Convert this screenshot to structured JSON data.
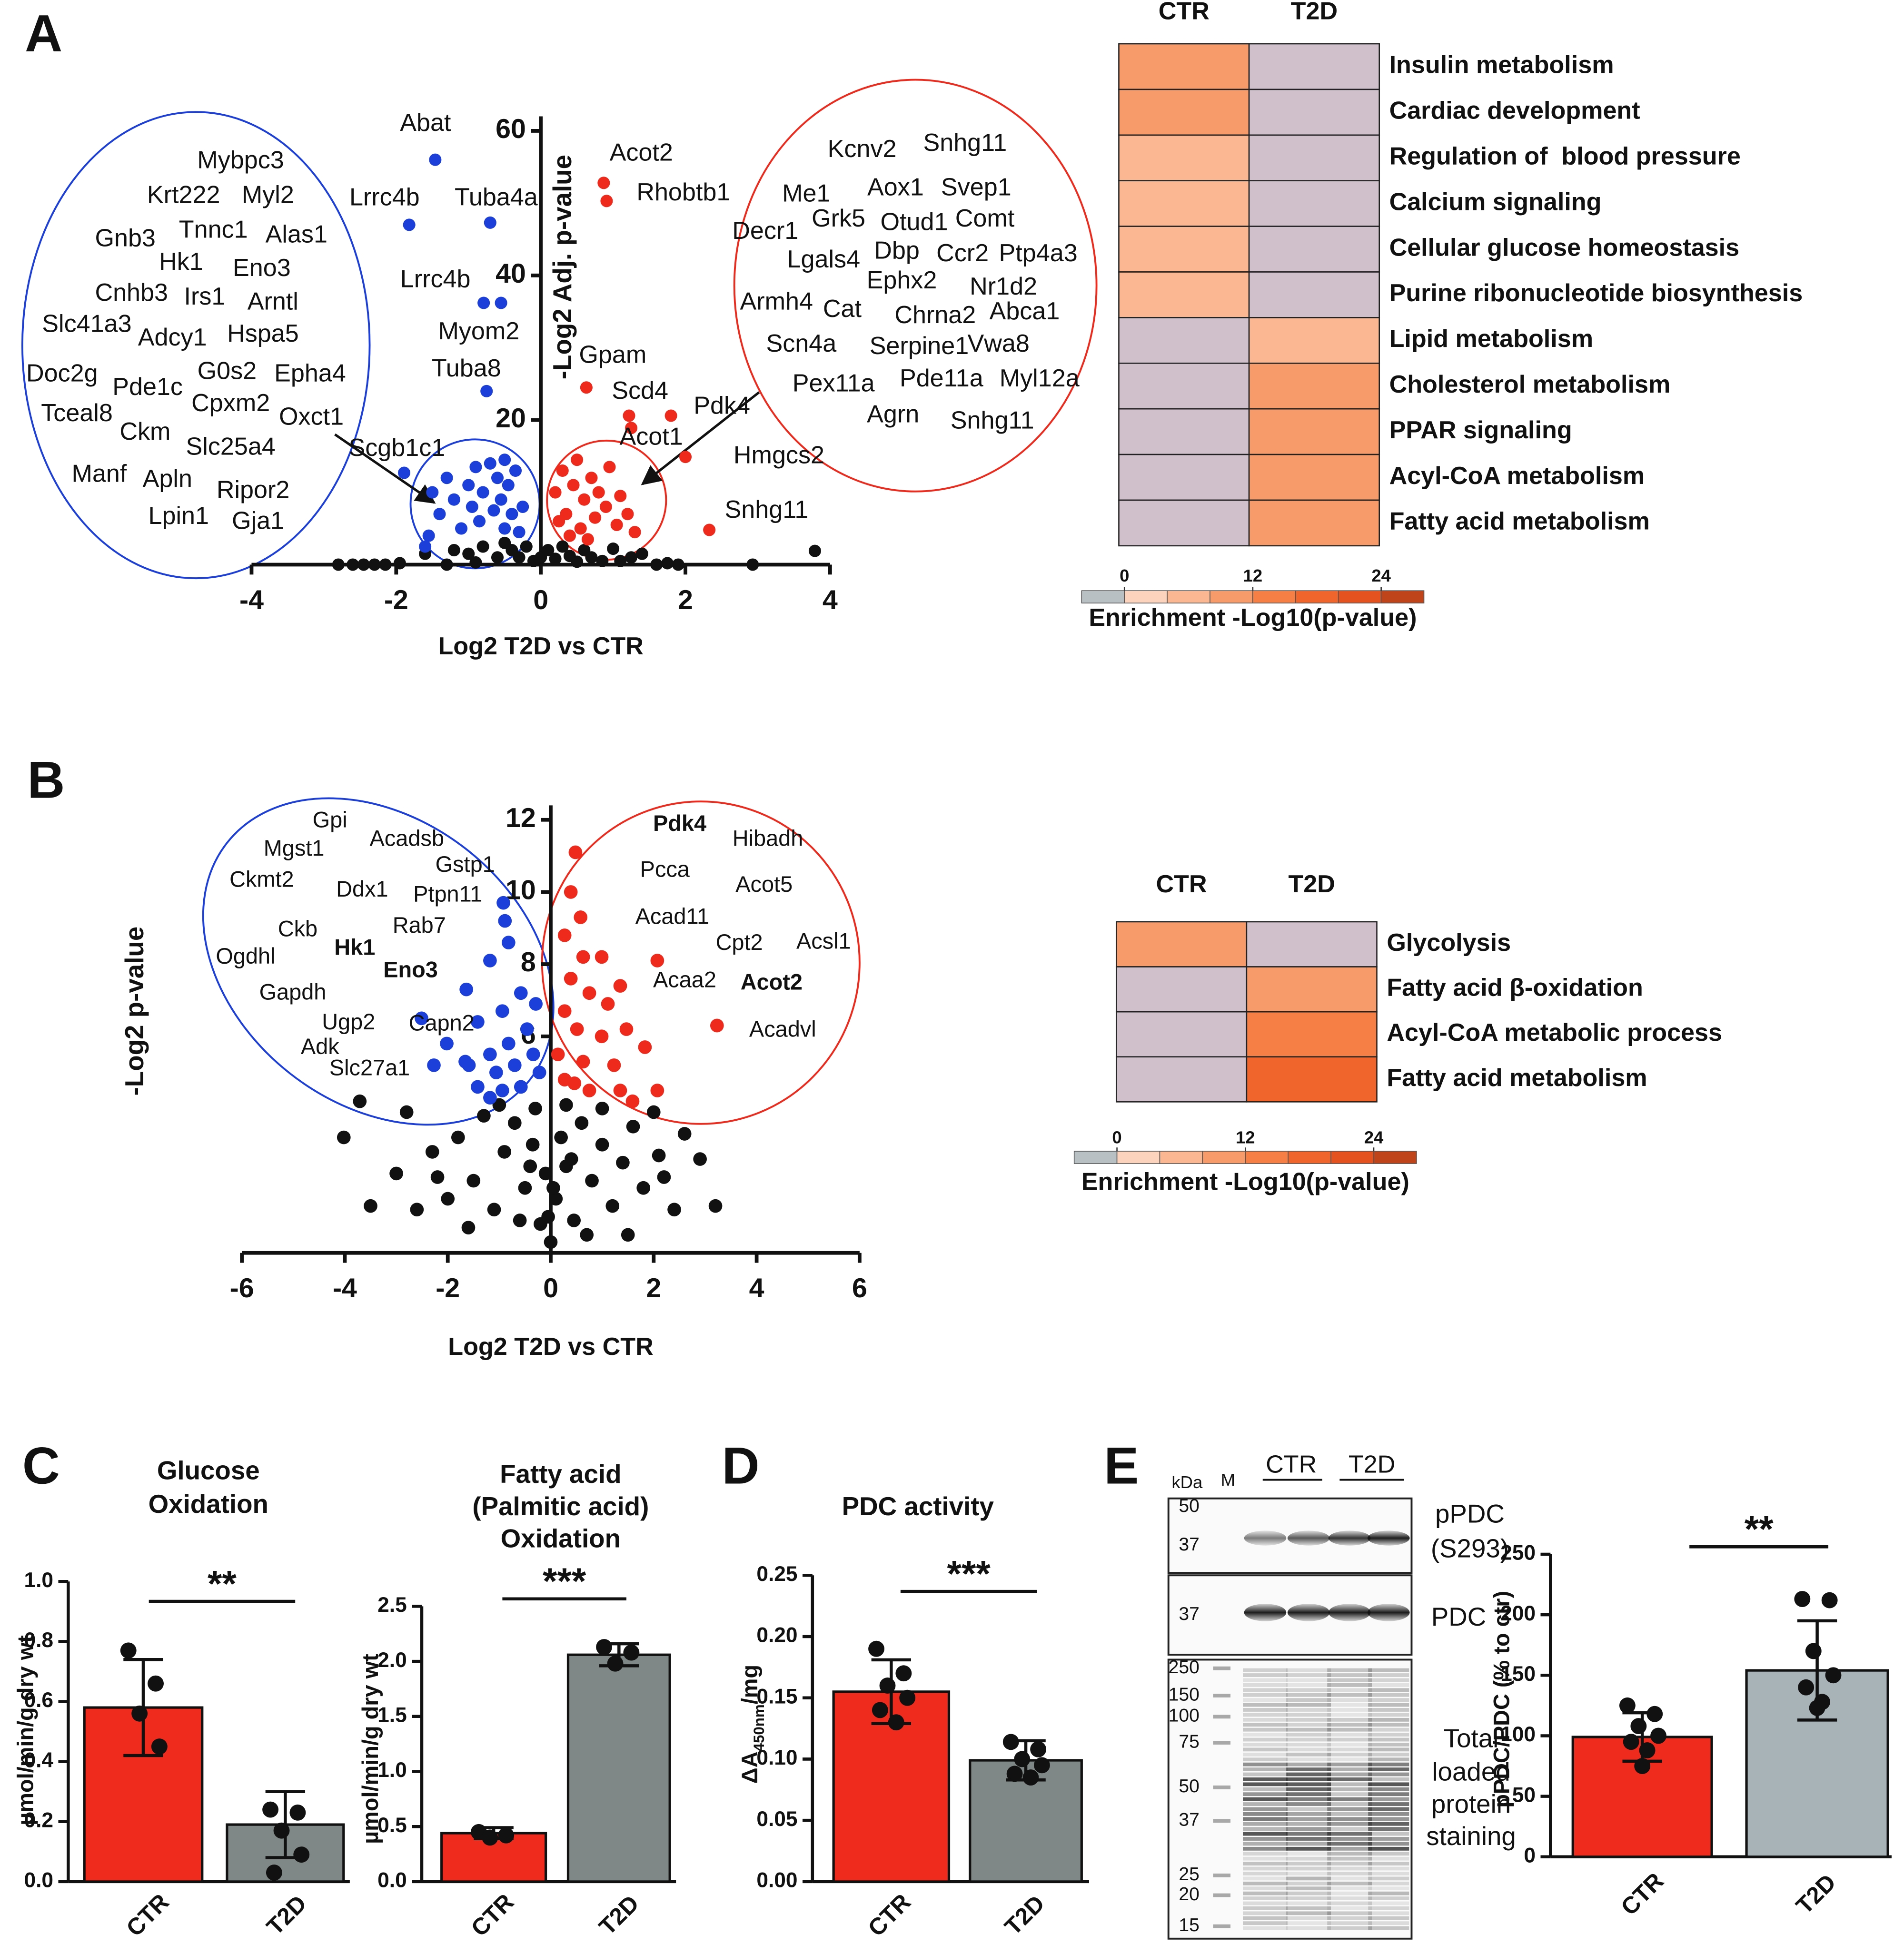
{
  "chart_data": [
    {
      "type": "scatter",
      "panel": "A",
      "xlabel": "Log2 T2D vs CTR",
      "ylabel": "-Log2 Adj. p-value",
      "xlim": [
        -4,
        4
      ],
      "xticks": [
        -4,
        -2,
        0,
        2,
        4
      ],
      "ylim": [
        0,
        62
      ],
      "yticks": [
        20,
        40,
        60
      ],
      "series": [
        {
          "color": "#111111",
          "x": [
            3.79,
            2.93,
            -2.8,
            -2.6,
            -2.45,
            -2.3,
            -2.15,
            -1.95,
            -1.6,
            -1.2,
            -1.0,
            -0.8,
            -0.6,
            -0.5,
            -0.4,
            -0.3,
            -0.2,
            -0.1,
            0,
            0.1,
            0.2,
            0.3,
            0.4,
            0.5,
            0.6,
            0.7,
            0.85,
            1.0,
            1.1,
            1.25,
            1.4,
            1.6,
            1.9,
            -1.3,
            -0.9,
            1.75
          ],
          "y": [
            1.9,
            0,
            0,
            0,
            0,
            0,
            0,
            0.2,
            1.5,
            2,
            1.5,
            2.5,
            1,
            3,
            2,
            1,
            2.5,
            0.5,
            1,
            2,
            0.8,
            2.5,
            1.2,
            0.4,
            2,
            1,
            0.5,
            2.2,
            0.5,
            1,
            1.5,
            0,
            0,
            0,
            0.3,
            0.2
          ]
        },
        {
          "color": "#1b3fd8",
          "x": [
            -1.46,
            -1.82,
            -0.7,
            -0.79,
            -0.55,
            -0.75,
            -1.89,
            -1.5,
            -1.4,
            -1.3,
            -1.2,
            -1.1,
            -1.0,
            -0.95,
            -0.9,
            -0.85,
            -0.8,
            -0.7,
            -0.65,
            -0.6,
            -0.55,
            -0.5,
            -0.45,
            -0.4,
            -0.35,
            -0.3,
            -0.25,
            -0.5,
            -1.55,
            -1.6
          ],
          "y": [
            56,
            47,
            47.3,
            36.2,
            36.2,
            24,
            12.7,
            10,
            7,
            12,
            9,
            5,
            11,
            8,
            13.5,
            6,
            10,
            14,
            7.5,
            12,
            9,
            5,
            11,
            7,
            13,
            4.5,
            8,
            14.5,
            4,
            2.5
          ]
        },
        {
          "color": "#ee2a1d",
          "x": [
            0.87,
            0.91,
            0.63,
            1.22,
            1.8,
            1.25,
            2.0,
            2.33,
            0.2,
            0.3,
            0.35,
            0.45,
            0.5,
            0.55,
            0.6,
            0.7,
            0.75,
            0.8,
            0.9,
            0.95,
            1.05,
            1.1,
            1.2,
            0.4,
            0.65,
            1.3,
            0.25
          ],
          "y": [
            52.8,
            50.3,
            24.5,
            20.6,
            20.6,
            18.9,
            14.9,
            4.8,
            10,
            13,
            7,
            11,
            14.5,
            5,
            9,
            12,
            6.5,
            10,
            8,
            13.5,
            5.5,
            9.5,
            7,
            4,
            3.5,
            4.5,
            6
          ]
        }
      ],
      "point_labels": [
        "Abat",
        "Lrrc4b",
        "Tuba4a",
        "Lrrc4b",
        "Myom2",
        "Tuba8",
        "Scgb1c1",
        "Acot2",
        "Rhobtb1",
        "Gpam",
        "Scd4",
        "Pdk4",
        "Acot1",
        "Hmgcs2",
        "Snhg11"
      ],
      "down_genes": [
        "Mybpc3",
        "Krt222",
        "Myl2",
        "Gnb3",
        "Tnnc1",
        "Alas1",
        "Hk1",
        "Eno3",
        "Cnhb3",
        "Irs1",
        "Arntl",
        "Slc41a3",
        "Adcy1",
        "Hspa5",
        "Doc2g",
        "Pde1c",
        "G0s2",
        "Epha4",
        "Tceal8",
        "Cpxm2",
        "Oxct1",
        "Ckm",
        "Slc25a4",
        "Manf",
        "Apln",
        "Ripor2",
        "Lpin1",
        "Gja1"
      ],
      "up_genes": [
        "Kcnv2",
        "Snhg11",
        "Me1",
        "Aox1",
        "Svep1",
        "Grk5",
        "Otud1",
        "Comt",
        "Decr1",
        "Dbp",
        "Ccr2",
        "Ptp4a3",
        "Lgals4",
        "Ephx2",
        "Nr1d2",
        "Armh4",
        "Cat",
        "Chrna2",
        "Abca1",
        "Scn4a",
        "Serpine1",
        "Vwa8",
        "Pex11a",
        "Pde11a",
        "Myl12a",
        "Agrn",
        "Snhg11"
      ]
    },
    {
      "type": "heatmap",
      "columns": [
        "CTR",
        "T2D"
      ],
      "rows": [
        "Insulin metabolism",
        "Cardiac development",
        "Regulation of  blood pressure",
        "Calcium signaling",
        "Cellular glucose homeostasis",
        "Purine ribonucleotide biosynthesis",
        "Lipid metabolism",
        "Cholesterol metabolism",
        "PPAR signaling",
        "Acyl-CoA metabolism",
        "Fatty acid metabolism"
      ],
      "values": [
        [
          9,
          null
        ],
        [
          9,
          null
        ],
        [
          6,
          null
        ],
        [
          6,
          null
        ],
        [
          6,
          null
        ],
        [
          6,
          null
        ],
        [
          null,
          6
        ],
        [
          null,
          10
        ],
        [
          null,
          10
        ],
        [
          null,
          10
        ],
        [
          null,
          10
        ]
      ],
      "empty_color": "#cfc0cb",
      "colorbar": {
        "clim": [
          -4,
          28
        ],
        "ticks": [
          0,
          12,
          24
        ],
        "colors": [
          "#b8c0c3",
          "#fcd3bd",
          "#fab792",
          "#f89b6b",
          "#f57f45",
          "#f0652b",
          "#e3521f",
          "#c0441a"
        ],
        "label": "Enrichment -Log10(p-value)"
      }
    },
    {
      "type": "scatter",
      "panel": "B",
      "xlabel": "Log2 T2D vs CTR",
      "ylabel": "-Log2 p-value",
      "xlim": [
        -6,
        6
      ],
      "xticks": [
        -6,
        -4,
        -2,
        0,
        2,
        4,
        6
      ],
      "ylim": [
        0,
        12.4
      ],
      "yticks": [
        6,
        8,
        10,
        12
      ],
      "series": [
        {
          "color": "#111111",
          "x": [
            -3.71,
            -4.02,
            -3.0,
            -2.6,
            -2.3,
            -2,
            -1.8,
            -1.5,
            -1.3,
            -1.1,
            -0.9,
            -0.7,
            -0.5,
            -0.35,
            -0.2,
            -0.1,
            0,
            0.1,
            0.2,
            0.3,
            0.45,
            0.6,
            0.8,
            1,
            1.2,
            1.4,
            1.6,
            1.8,
            2.1,
            2.4,
            2.6,
            2.9,
            3.2,
            -3.5,
            -2.8,
            2,
            -0.6,
            0.7,
            -1.6,
            1.5,
            -0.3,
            0.3,
            -1,
            1,
            -2.2,
            2.2,
            -0.05,
            0.05,
            -0.4,
            0.4
          ],
          "y": [
            4.2,
            3.2,
            2.2,
            1.2,
            2.8,
            1.5,
            3.2,
            2,
            3.8,
            1.2,
            2.8,
            3.6,
            1.8,
            3,
            0.8,
            2.2,
            0.3,
            1.5,
            3.2,
            2.4,
            0.9,
            3.6,
            2,
            3,
            1.3,
            2.5,
            3.5,
            1.8,
            2.7,
            1.2,
            3.3,
            2.6,
            1.3,
            1.3,
            3.9,
            3.9,
            0.9,
            0.5,
            0.7,
            0.5,
            4,
            4.1,
            4.1,
            4,
            2.1,
            2.1,
            1,
            1.8,
            2.4,
            2.6
          ]
        },
        {
          "color": "#1b3fd8",
          "x": [
            -0.92,
            -0.89,
            -0.82,
            -1.18,
            -1.64,
            -0.29,
            -0.58,
            -0.94,
            -1.42,
            -2.51,
            -2.02,
            -0.46,
            -0.82,
            -1.18,
            -1.66,
            -2.27,
            -0.34,
            -0.7,
            -1.06,
            -1.42,
            -0.58,
            -0.22,
            -0.94,
            -1.59,
            -1.18
          ],
          "y": [
            9.7,
            9.2,
            8.6,
            8.1,
            7.3,
            6.9,
            7.2,
            6.7,
            6.4,
            6.5,
            5.8,
            6.2,
            5.8,
            5.5,
            5.3,
            5.2,
            5.5,
            5.2,
            5,
            4.6,
            4.6,
            5,
            4.5,
            5.2,
            4.3
          ]
        },
        {
          "color": "#ee2a1d",
          "x": [
            0.48,
            0.39,
            0.58,
            0.27,
            0.63,
            0.99,
            0.39,
            0.75,
            1.35,
            2.07,
            3.23,
            1.11,
            0.27,
            0.51,
            0.99,
            1.47,
            1.83,
            0.14,
            0.63,
            1.23,
            0.27,
            0.75,
            1.35,
            2.07,
            1.59,
            0.46
          ],
          "y": [
            11.1,
            10,
            9.3,
            8.8,
            8.2,
            8.2,
            7.6,
            7.2,
            7.4,
            8.1,
            6.3,
            6.9,
            6.7,
            6.2,
            6,
            6.2,
            5.7,
            5.5,
            5.3,
            5.2,
            4.8,
            4.5,
            4.5,
            4.5,
            4.2,
            4.7
          ]
        }
      ],
      "down_genes": [
        "Gpi",
        "Mgst1",
        "Acadsb",
        "Ckmt2",
        "Gstp1",
        "Ddx1",
        "Ptpn11",
        "Rab7",
        "Ckb",
        {
          "text": "Hk1",
          "bold": true
        },
        "Ogdhl",
        {
          "text": "Eno3",
          "bold": true
        },
        "Gapdh",
        "Ugp2",
        "Capn2",
        "Adk",
        "Slc27a1"
      ],
      "up_genes": [
        {
          "text": "Pdk4",
          "bold": true
        },
        "Hibadh",
        "Pcca",
        "Acot5",
        "Acad11",
        "Cpt2",
        "Acsl1",
        "Acaa2",
        {
          "text": "Acot2",
          "bold": true
        },
        "Acadvl"
      ]
    },
    {
      "type": "heatmap",
      "columns": [
        "CTR",
        "T2D"
      ],
      "rows": [
        "Glycolysis",
        "Fatty acid β-oxidation",
        "Acyl-CoA metabolic process",
        "Fatty acid metabolism"
      ],
      "values": [
        [
          9,
          null
        ],
        [
          null,
          10
        ],
        [
          null,
          13
        ],
        [
          null,
          17
        ]
      ],
      "empty_color": "#cfc0cb",
      "colorbar": {
        "clim": [
          -4,
          28
        ],
        "ticks": [
          0,
          12,
          24
        ],
        "colors": [
          "#b8c0c3",
          "#fcd3bd",
          "#fab792",
          "#f89b6b",
          "#f57f45",
          "#f0652b",
          "#e3521f",
          "#c0441a"
        ],
        "label": "Enrichment -Log10(p-value)"
      }
    },
    {
      "type": "bar",
      "panel": "C",
      "title": [
        "Glucose",
        "Oxidation"
      ],
      "ylabel": "µmol/min/g dry wt",
      "categories": [
        "CTR",
        "T2D"
      ],
      "colors": [
        "#ef2b1d",
        "#7f8886"
      ],
      "values": [
        0.58,
        0.19
      ],
      "errors": [
        0.16,
        0.11
      ],
      "points": [
        [
          0.77,
          0.66,
          0.56,
          0.45
        ],
        [
          0.24,
          0.23,
          0.17,
          0.09,
          0.03
        ]
      ],
      "significance": "**",
      "ylim": [
        0,
        1
      ],
      "yticks": [
        {
          "value": 0,
          "label": "0.0"
        },
        0.2,
        0.4,
        0.6,
        0.8,
        {
          "value": 1,
          "label": "1.0"
        }
      ]
    },
    {
      "type": "bar",
      "title": [
        "Fatty acid",
        "(Palmitic acid)",
        "Oxidation"
      ],
      "ylabel": "µmol/min/g dry wt",
      "categories": [
        "CTR",
        "T2D"
      ],
      "colors": [
        "#ef2b1d",
        "#7f8886"
      ],
      "values": [
        0.44,
        2.06
      ],
      "errors": [
        0.05,
        0.1
      ],
      "points": [
        [
          0.45,
          0.42,
          0.4
        ],
        [
          2.13,
          2.08,
          1.98
        ]
      ],
      "significance": "***",
      "ylim": [
        0,
        2.5
      ],
      "yticks": [
        {
          "value": 0,
          "label": "0.0"
        },
        0.5,
        {
          "value": 1,
          "label": "1.0"
        },
        1.5,
        {
          "value": 2,
          "label": "2.0"
        },
        2.5
      ]
    },
    {
      "type": "bar",
      "panel": "D",
      "title": [
        "PDC activity"
      ],
      "ylabel": [
        "ΔA",
        "450nm",
        "/mg"
      ],
      "categories": [
        "CTR",
        "T2D"
      ],
      "colors": [
        "#ef2b1d",
        "#7f8886"
      ],
      "values": [
        0.155,
        0.099
      ],
      "errors": [
        0.026,
        0.016
      ],
      "points": [
        [
          0.19,
          0.17,
          0.16,
          0.15,
          0.14,
          0.13
        ],
        [
          0.114,
          0.108,
          0.1,
          0.095,
          0.088,
          0.085
        ]
      ],
      "significance": "***",
      "ylim": [
        0,
        0.25
      ],
      "yticks": [
        {
          "value": 0,
          "label": "0.00"
        },
        0.05,
        {
          "value": 0.1,
          "label": "0.10"
        },
        0.15,
        {
          "value": 0.2,
          "label": "0.20"
        },
        0.25
      ]
    },
    {
      "type": "bar",
      "ylabel": "pPDC/PDC (% to ctr)",
      "categories": [
        "CTR",
        "T2D"
      ],
      "colors": [
        "#ef2b1d",
        "#a8b3b8"
      ],
      "values": [
        99,
        154
      ],
      "errors": [
        20,
        41
      ],
      "points": [
        [
          125,
          118,
          108,
          100,
          95,
          88,
          75
        ],
        [
          213,
          212,
          170,
          150,
          140,
          128,
          123
        ]
      ],
      "significance": "**",
      "ylim": [
        0,
        250
      ],
      "yticks": [
        0,
        50,
        100,
        150,
        200,
        250
      ]
    }
  ],
  "blot": {
    "panel": "E",
    "kda": "kDa",
    "marker": "M",
    "groups": [
      "CTR",
      "T2D"
    ],
    "rows": [
      {
        "mw": [
          "50",
          "37"
        ],
        "label": [
          "pPDC",
          "(S293)"
        ]
      },
      {
        "mw": [
          "37"
        ],
        "label": [
          "PDC"
        ]
      },
      {
        "mw": [
          "250",
          "150",
          "100",
          "75",
          "50",
          "37",
          "25",
          "20",
          "15"
        ],
        "label": [
          "Total",
          "loaded",
          "protein",
          "staining"
        ]
      }
    ]
  }
}
